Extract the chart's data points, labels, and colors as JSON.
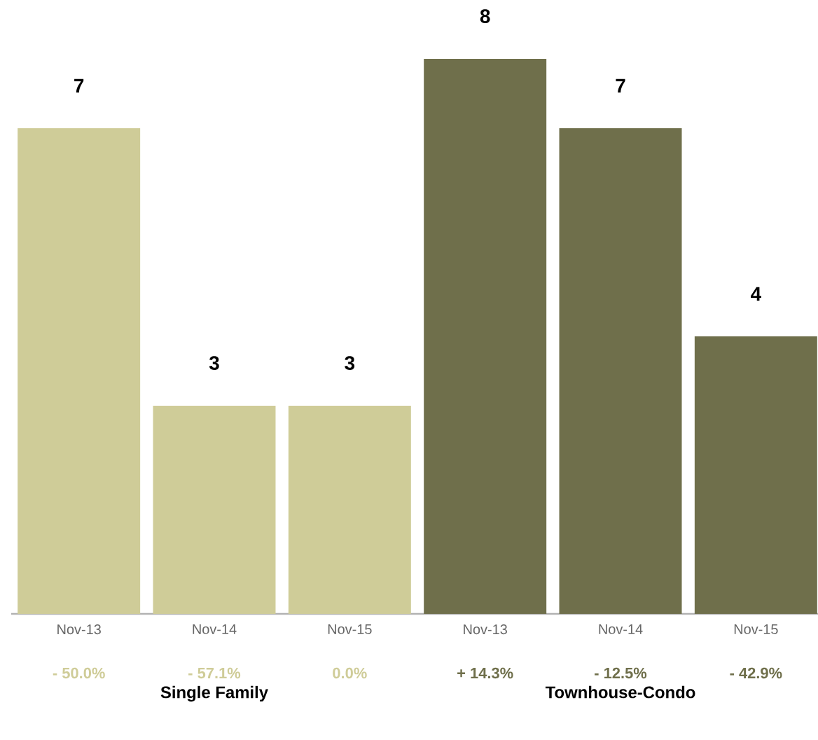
{
  "chart_data": [
    {
      "type": "bar",
      "xlabel": "Single Family",
      "categories": [
        "Nov-13",
        "Nov-14",
        "Nov-15"
      ],
      "values": [
        7,
        3,
        3
      ],
      "color": "#cfcc98",
      "data_labels": true,
      "annotations": [
        "- 50.0%",
        "- 57.1%",
        "0.0%"
      ]
    },
    {
      "type": "bar",
      "xlabel": "Townhouse-Condo",
      "categories": [
        "Nov-13",
        "Nov-14",
        "Nov-15"
      ],
      "values": [
        8,
        7,
        4
      ],
      "color": "#6f6f4b",
      "data_labels": true,
      "annotations": [
        "+ 14.3%",
        "- 12.5%",
        "- 42.9%"
      ]
    }
  ]
}
